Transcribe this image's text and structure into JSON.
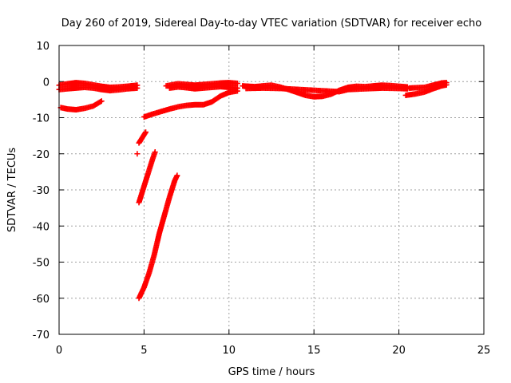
{
  "chart_data": {
    "type": "scatter",
    "title": "Day 260 of 2019, Sidereal Day-to-day VTEC variation (SDTVAR) for receiver echo",
    "xlabel": "GPS time / hours",
    "ylabel": "SDTVAR / TECUs",
    "xlim": [
      0,
      25
    ],
    "ylim": [
      -70,
      10
    ],
    "x_ticks": [
      0,
      5,
      10,
      15,
      20,
      25
    ],
    "x_tick_labels": [
      "0",
      "5",
      "10",
      "15",
      "20",
      "25"
    ],
    "y_ticks": [
      10,
      0,
      -10,
      -20,
      -30,
      -40,
      -50,
      -60,
      -70
    ],
    "y_tick_labels": [
      "10",
      "0",
      "-10",
      "-20",
      "-30",
      "-40",
      "-50",
      "-60",
      "-70"
    ],
    "grid": true,
    "marker": "plus",
    "series": [
      {
        "color": "#ff0000",
        "segments": [
          [
            [
              0.0,
              -1.0
            ],
            [
              0.5,
              -0.6
            ],
            [
              1.0,
              -0.3
            ],
            [
              1.5,
              -0.5
            ],
            [
              2.0,
              -0.9
            ],
            [
              2.5,
              -1.3
            ],
            [
              3.0,
              -1.6
            ],
            [
              3.5,
              -1.5
            ],
            [
              4.0,
              -1.3
            ],
            [
              4.6,
              -1.0
            ]
          ],
          [
            [
              0.0,
              -2.2
            ],
            [
              0.5,
              -2.0
            ],
            [
              1.0,
              -1.8
            ],
            [
              1.5,
              -1.6
            ],
            [
              2.0,
              -1.8
            ],
            [
              2.5,
              -2.2
            ],
            [
              3.0,
              -2.5
            ],
            [
              3.5,
              -2.3
            ],
            [
              4.0,
              -2.0
            ],
            [
              4.6,
              -1.8
            ]
          ],
          [
            [
              0.1,
              -7.2
            ],
            [
              0.5,
              -7.6
            ],
            [
              1.0,
              -7.8
            ],
            [
              1.5,
              -7.4
            ],
            [
              2.0,
              -6.8
            ],
            [
              2.5,
              -5.4
            ]
          ],
          [
            [
              4.7,
              -17.0
            ],
            [
              4.9,
              -15.5
            ],
            [
              5.1,
              -14.0
            ]
          ],
          [
            [
              4.6,
              -20.0
            ]
          ],
          [
            [
              4.7,
              -33.5
            ],
            [
              4.9,
              -30.5
            ],
            [
              5.1,
              -27.5
            ],
            [
              5.3,
              -24.5
            ],
            [
              5.5,
              -21.5
            ],
            [
              5.65,
              -19.5
            ]
          ],
          [
            [
              4.7,
              -60.0
            ],
            [
              5.0,
              -57.0
            ],
            [
              5.3,
              -53.0
            ],
            [
              5.6,
              -48.0
            ],
            [
              5.9,
              -42.0
            ],
            [
              6.2,
              -37.0
            ],
            [
              6.5,
              -32.0
            ],
            [
              6.8,
              -27.5
            ],
            [
              6.95,
              -26.0
            ]
          ],
          [
            [
              5.0,
              -9.8
            ],
            [
              5.5,
              -9.0
            ],
            [
              6.0,
              -8.3
            ],
            [
              6.5,
              -7.6
            ],
            [
              7.0,
              -7.0
            ],
            [
              7.5,
              -6.6
            ],
            [
              8.0,
              -6.4
            ],
            [
              8.5,
              -6.4
            ],
            [
              9.0,
              -5.6
            ],
            [
              9.5,
              -4.0
            ],
            [
              10.0,
              -3.0
            ],
            [
              10.5,
              -2.6
            ]
          ],
          [
            [
              6.3,
              -1.2
            ],
            [
              7.0,
              -0.6
            ],
            [
              7.5,
              -0.8
            ],
            [
              8.0,
              -1.0
            ],
            [
              8.5,
              -0.8
            ],
            [
              9.0,
              -0.6
            ],
            [
              9.5,
              -0.4
            ],
            [
              10.0,
              -0.3
            ],
            [
              10.5,
              -0.5
            ]
          ],
          [
            [
              6.5,
              -1.8
            ],
            [
              7.0,
              -1.5
            ],
            [
              7.5,
              -1.7
            ],
            [
              8.0,
              -2.0
            ],
            [
              8.5,
              -1.8
            ],
            [
              9.0,
              -1.6
            ],
            [
              9.5,
              -1.4
            ],
            [
              10.0,
              -1.6
            ],
            [
              10.5,
              -1.8
            ]
          ],
          [
            [
              10.8,
              -1.2
            ],
            [
              11.5,
              -1.4
            ],
            [
              12.0,
              -1.2
            ],
            [
              12.5,
              -1.0
            ],
            [
              13.0,
              -1.5
            ],
            [
              13.5,
              -2.2
            ],
            [
              14.0,
              -3.0
            ],
            [
              14.5,
              -3.8
            ],
            [
              15.0,
              -4.2
            ],
            [
              15.5,
              -4.1
            ],
            [
              16.0,
              -3.5
            ],
            [
              16.5,
              -2.4
            ],
            [
              17.0,
              -1.6
            ],
            [
              17.5,
              -1.3
            ],
            [
              18.0,
              -1.4
            ],
            [
              18.5,
              -1.2
            ],
            [
              19.0,
              -1.0
            ],
            [
              19.5,
              -1.1
            ],
            [
              20.0,
              -1.3
            ],
            [
              20.5,
              -1.5
            ]
          ],
          [
            [
              11.0,
              -1.9
            ],
            [
              12.0,
              -1.8
            ],
            [
              13.0,
              -1.9
            ],
            [
              16.5,
              -2.8
            ],
            [
              17.0,
              -2.2
            ],
            [
              18.0,
              -2.0
            ],
            [
              19.0,
              -1.8
            ],
            [
              20.0,
              -1.9
            ],
            [
              20.5,
              -2.0
            ]
          ],
          [
            [
              20.6,
              -1.8
            ],
            [
              21.0,
              -1.7
            ],
            [
              21.5,
              -1.6
            ],
            [
              22.0,
              -1.0
            ],
            [
              22.5,
              -0.4
            ],
            [
              22.8,
              -0.3
            ]
          ],
          [
            [
              20.4,
              -3.8
            ],
            [
              21.0,
              -3.4
            ],
            [
              21.5,
              -2.9
            ],
            [
              22.0,
              -2.0
            ],
            [
              22.5,
              -1.2
            ],
            [
              22.8,
              -0.9
            ]
          ]
        ]
      }
    ]
  }
}
